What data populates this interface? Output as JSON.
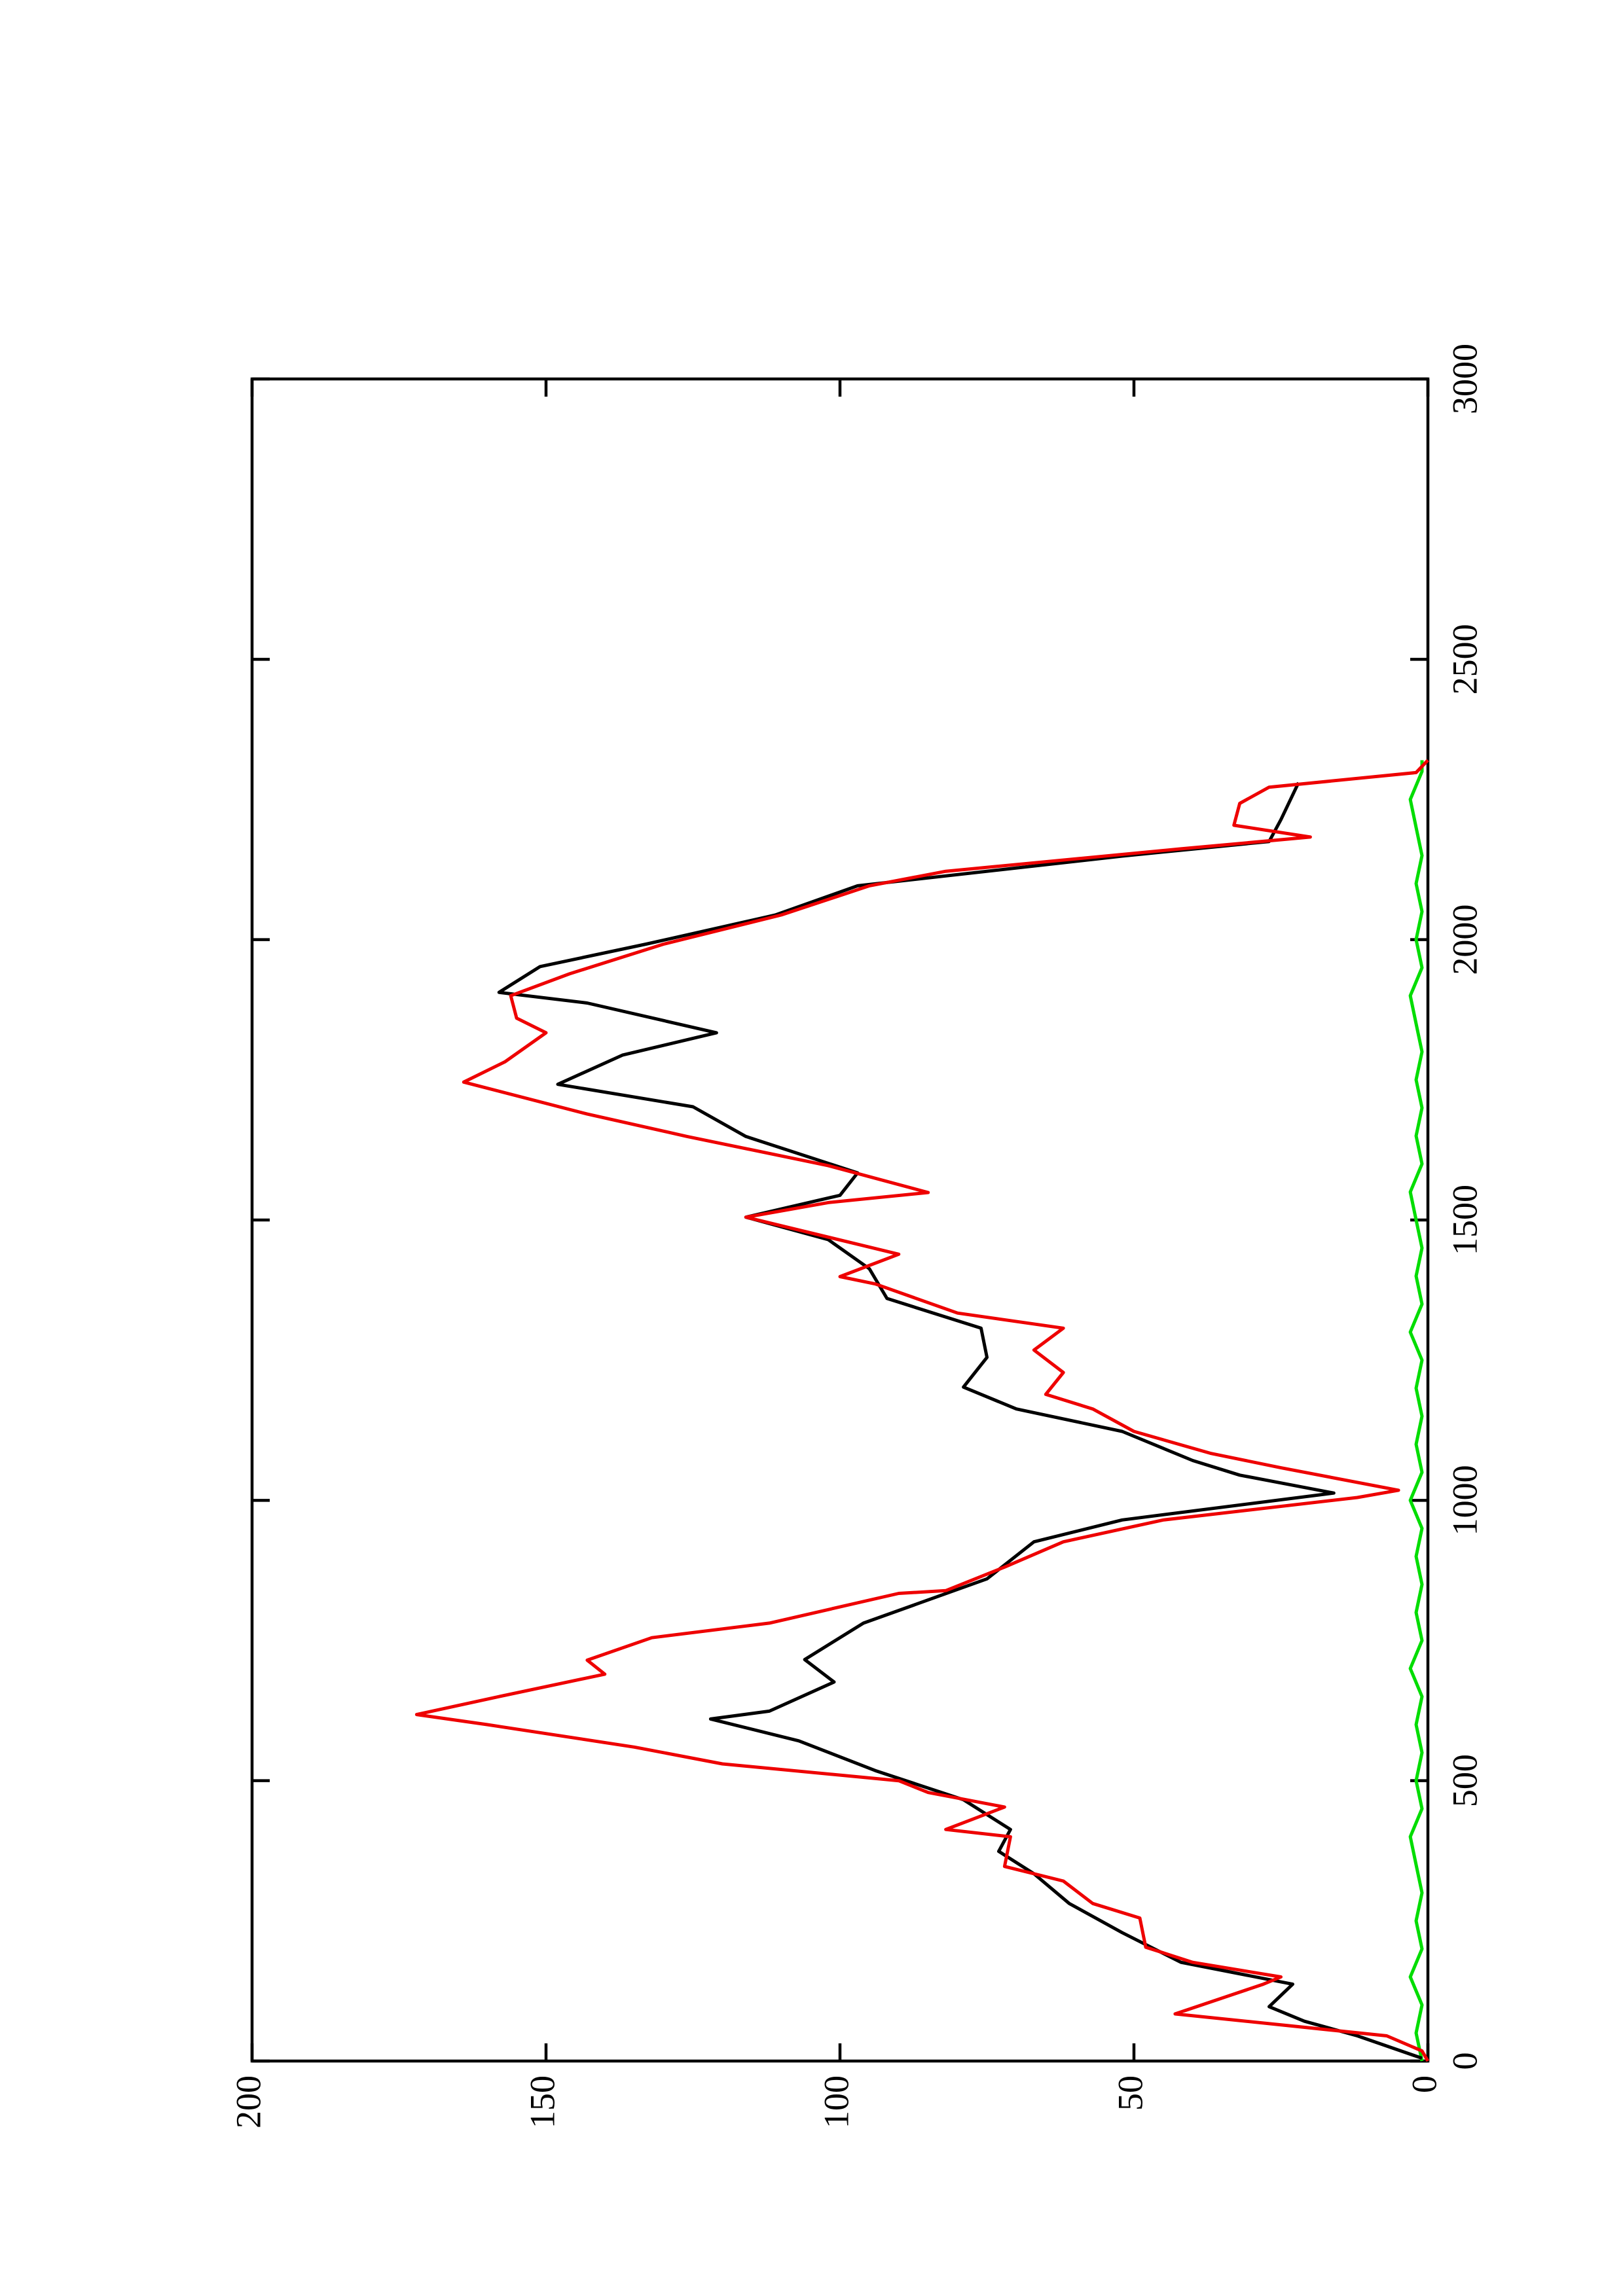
{
  "chart_data": {
    "type": "line",
    "xlim": [
      0,
      3000
    ],
    "xticks": [
      0,
      500,
      1000,
      1500,
      2000,
      2500,
      3000
    ],
    "ylim": [
      0,
      200
    ],
    "yticks": [
      0,
      50,
      100,
      150,
      200
    ],
    "series": [
      {
        "color": "#00dd00",
        "x": [
          0,
          50,
          100,
          150,
          200,
          250,
          300,
          350,
          400,
          450,
          500,
          550,
          600,
          650,
          700,
          750,
          800,
          850,
          900,
          950,
          1000,
          1050,
          1100,
          1150,
          1200,
          1250,
          1300,
          1350,
          1400,
          1450,
          1500,
          1550,
          1600,
          1650,
          1700,
          1750,
          1800,
          1850,
          1900,
          1950,
          2000,
          2050,
          2100,
          2150,
          2200,
          2250,
          2300,
          2320
        ],
        "values": [
          1,
          2,
          1,
          3,
          1,
          2,
          1,
          2,
          3,
          1,
          2,
          1,
          2,
          1,
          3,
          1,
          2,
          1,
          2,
          1,
          3,
          1,
          2,
          1,
          2,
          1,
          3,
          1,
          2,
          1,
          2,
          3,
          1,
          2,
          1,
          2,
          1,
          2,
          3,
          1,
          2,
          1,
          2,
          1,
          2,
          3,
          1,
          1
        ]
      },
      {
        "color": "#000000",
        "x": [
          5,
          45,
          71,
          97,
          137,
          176,
          229,
          281,
          334,
          374,
          413,
          466,
          518,
          571,
          610,
          624,
          676,
          716,
          781,
          860,
          926,
          965,
          1013,
          1045,
          1071,
          1123,
          1163,
          1202,
          1255,
          1307,
          1360,
          1413,
          1465,
          1505,
          1544,
          1584,
          1649,
          1702,
          1742,
          1794,
          1834,
          1887,
          1906,
          1952,
          1992,
          2044,
          2096,
          2149,
          2175,
          2214,
          2280
        ],
        "values": [
          1,
          12,
          21,
          27,
          23,
          42,
          52,
          61,
          67,
          73,
          71,
          79,
          94,
          107,
          122,
          112,
          101,
          106,
          96,
          75,
          67,
          52,
          16,
          32,
          40,
          52,
          70,
          79,
          75,
          76,
          92,
          95,
          102,
          116,
          100,
          97,
          116,
          125,
          148,
          137,
          121,
          143,
          158,
          151,
          133,
          111,
          97,
          52,
          27,
          25,
          22
        ]
      },
      {
        "color": "#ee0000",
        "x": [
          0,
          18,
          45,
          84,
          137,
          150,
          176,
          203,
          255,
          281,
          321,
          347,
          400,
          413,
          453,
          479,
          500,
          530,
          560,
          600,
          618,
          650,
          690,
          715,
          755,
          781,
          834,
          839,
          860,
          881,
          926,
          965,
          1005,
          1018,
          1058,
          1084,
          1123,
          1163,
          1189,
          1228,
          1268,
          1307,
          1334,
          1386,
          1399,
          1439,
          1505,
          1531,
          1549,
          1597,
          1649,
          1689,
          1746,
          1782,
          1834,
          1860,
          1900,
          1939,
          1992,
          2044,
          2096,
          2122,
          2162,
          2183,
          2204,
          2243,
          2272,
          2298,
          2320
        ],
        "values": [
          0,
          1,
          7,
          43,
          28,
          25,
          40,
          48,
          49,
          57,
          62,
          72,
          71,
          82,
          72,
          85,
          90,
          120,
          135,
          160,
          172,
          158,
          140,
          143,
          132,
          112,
          90,
          82,
          77,
          72,
          62,
          45,
          12,
          5,
          25,
          37,
          50,
          57,
          65,
          62,
          67,
          62,
          80,
          94,
          100,
          90,
          116,
          102,
          85,
          102,
          126,
          143,
          164,
          157,
          150,
          155,
          156,
          146,
          130,
          110,
          95,
          82,
          42,
          20,
          33,
          32,
          27,
          2,
          0
        ]
      }
    ]
  }
}
